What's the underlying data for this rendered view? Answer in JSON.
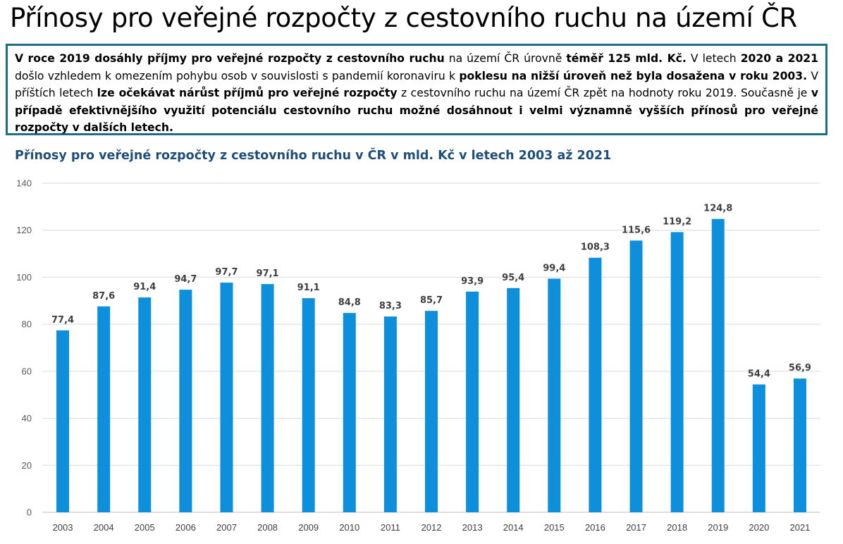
{
  "header": {
    "title": "Přínosy pro veřejné rozpočty z cestovního ruchu na území ČR"
  },
  "summary": {
    "segments": [
      {
        "text": "V roce 2019 dosáhly příjmy pro veřejné rozpočty z cestovního ruchu",
        "bold": true
      },
      {
        "text": " na území ČR úrovně ",
        "bold": false
      },
      {
        "text": "téměř 125 mld. Kč.",
        "bold": true
      },
      {
        "text": " V letech ",
        "bold": false
      },
      {
        "text": "2020 a 2021",
        "bold": true
      },
      {
        "text": " došlo vzhledem k omezením pohybu osob v souvislosti s pandemií koronaviru k ",
        "bold": false
      },
      {
        "text": "poklesu na nižší úroveň než byla dosažena v roku 2003.",
        "bold": true
      },
      {
        "text": " V příštích letech ",
        "bold": false
      },
      {
        "text": "lze očekávat nárůst příjmů pro veřejné rozpočty",
        "bold": true
      },
      {
        "text": " z cestovního ruchu na území ČR zpět na hodnoty roku 2019. Současně je ",
        "bold": false
      },
      {
        "text": "v případě efektivnějšího využití potenciálu cestovního ruchu možné dosáhnout i velmi významně vyšších přínosů pro veřejné rozpočty v dalších letech.",
        "bold": true
      }
    ]
  },
  "colors": {
    "bar": "#0e8fdc",
    "grid": "#d9d9d9",
    "title": "#1f4e79",
    "border": "#1a6e8a"
  },
  "chart_data": {
    "type": "bar",
    "title": "Přínosy pro veřejné rozpočty z cestovního ruchu v ČR v mld. Kč v letech 2003 až 2021",
    "xlabel": "",
    "ylabel": "",
    "ylim": [
      0,
      140
    ],
    "yticks": [
      0,
      20,
      40,
      60,
      80,
      100,
      120,
      140
    ],
    "grid": true,
    "legend": "none",
    "categories": [
      "2003",
      "2004",
      "2005",
      "2006",
      "2007",
      "2008",
      "2009",
      "2010",
      "2011",
      "2012",
      "2013",
      "2014",
      "2015",
      "2016",
      "2017",
      "2018",
      "2019",
      "2020",
      "2021"
    ],
    "values": [
      77.4,
      87.6,
      91.4,
      94.7,
      97.7,
      97.1,
      91.1,
      84.8,
      83.3,
      85.7,
      93.9,
      95.4,
      99.4,
      108.3,
      115.6,
      119.2,
      124.8,
      54.4,
      56.9
    ],
    "value_labels": [
      "77,4",
      "87,6",
      "91,4",
      "94,7",
      "97,7",
      "97,1",
      "91,1",
      "84,8",
      "83,3",
      "85,7",
      "93,9",
      "95,4",
      "99,4",
      "108,3",
      "115,6",
      "119,2",
      "124,8",
      "54,4",
      "56,9"
    ]
  }
}
